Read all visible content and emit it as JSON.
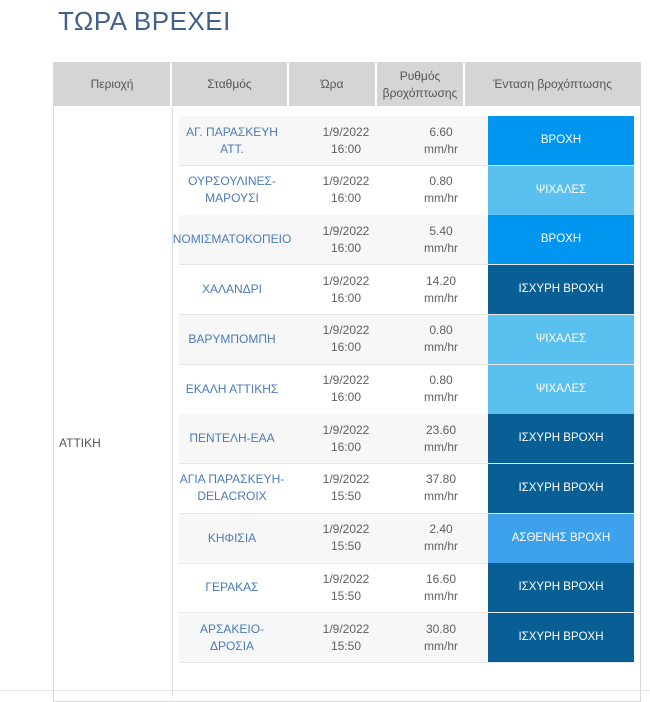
{
  "page": {
    "title": "ΤΩΡΑ ΒΡΕΧΕΙ"
  },
  "table": {
    "headers": {
      "region": "Περιοχή",
      "station": "Σταθμός",
      "time": "Ώρα",
      "rate": "Ρυθμός βροχόπτωσης",
      "intensity": "Ένταση βροχόπτωσης"
    },
    "region": "ΑΤΤΙΚΗ",
    "colors": {
      "ΒΡΟΧΗ": "#0096f0",
      "ΨΙΧΑΛΕΣ": "#5ac0f0",
      "ΙΣΧΥΡΗ ΒΡΟΧΗ": "#075f96",
      "ΑΣΘΕΝΗΣ ΒΡΟΧΗ": "#3ea1ec"
    },
    "rows": [
      {
        "station": "ΑΓ. ΠΑΡΑΣΚΕΥΗ ΑΤΤ.",
        "date": "1/9/2022",
        "hour": "16:00",
        "rate": "6.60",
        "unit": "mm/hr",
        "intensity": "ΒΡΟΧΗ"
      },
      {
        "station": "ΟΥΡΣΟΥΛΙΝΕΣ-ΜΑΡΟΥΣΙ",
        "date": "1/9/2022",
        "hour": "16:00",
        "rate": "0.80",
        "unit": "mm/hr",
        "intensity": "ΨΙΧΑΛΕΣ"
      },
      {
        "station": "ΝΟΜΙΣΜΑΤΟΚΟΠΕΙΟ",
        "date": "1/9/2022",
        "hour": "16:00",
        "rate": "5.40",
        "unit": "mm/hr",
        "intensity": "ΒΡΟΧΗ"
      },
      {
        "station": "ΧΑΛΑΝΔΡΙ",
        "date": "1/9/2022",
        "hour": "16:00",
        "rate": "14.20",
        "unit": "mm/hr",
        "intensity": "ΙΣΧΥΡΗ ΒΡΟΧΗ"
      },
      {
        "station": "ΒΑΡΥΜΠΟΜΠΗ",
        "date": "1/9/2022",
        "hour": "16:00",
        "rate": "0.80",
        "unit": "mm/hr",
        "intensity": "ΨΙΧΑΛΕΣ"
      },
      {
        "station": "ΕΚΑΛΗ ΑΤΤΙΚΗΣ",
        "date": "1/9/2022",
        "hour": "16:00",
        "rate": "0.80",
        "unit": "mm/hr",
        "intensity": "ΨΙΧΑΛΕΣ"
      },
      {
        "station": "ΠΕΝΤΕΛΗ-ΕΑΑ",
        "date": "1/9/2022",
        "hour": "16:00",
        "rate": "23.60",
        "unit": "mm/hr",
        "intensity": "ΙΣΧΥΡΗ ΒΡΟΧΗ"
      },
      {
        "station": "ΑΓΙΑ ΠΑΡΑΣΚΕΥΗ-DELACROIX",
        "date": "1/9/2022",
        "hour": "15:50",
        "rate": "37.80",
        "unit": "mm/hr",
        "intensity": "ΙΣΧΥΡΗ ΒΡΟΧΗ"
      },
      {
        "station": "ΚΗΦΙΣΙΑ",
        "date": "1/9/2022",
        "hour": "15:50",
        "rate": "2.40",
        "unit": "mm/hr",
        "intensity": "ΑΣΘΕΝΗΣ ΒΡΟΧΗ"
      },
      {
        "station": "ΓΕΡΑΚΑΣ",
        "date": "1/9/2022",
        "hour": "15:50",
        "rate": "16.60",
        "unit": "mm/hr",
        "intensity": "ΙΣΧΥΡΗ ΒΡΟΧΗ"
      },
      {
        "station": "ΑΡΣΑΚΕΙΟ-ΔΡΟΣΙΑ",
        "date": "1/9/2022",
        "hour": "15:50",
        "rate": "30.80",
        "unit": "mm/hr",
        "intensity": "ΙΣΧΥΡΗ ΒΡΟΧΗ"
      }
    ]
  }
}
